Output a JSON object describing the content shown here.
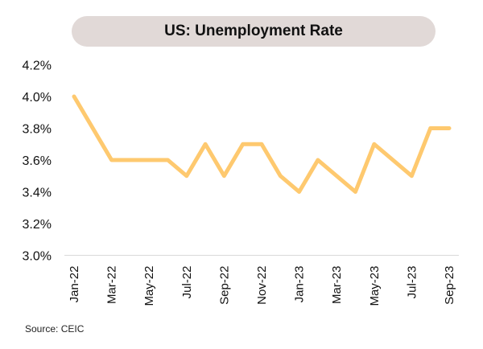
{
  "chart_data": {
    "type": "line",
    "title": "US: Unemployment Rate",
    "xlabel": "",
    "ylabel": "",
    "x": [
      "Jan-22",
      "Feb-22",
      "Mar-22",
      "Apr-22",
      "May-22",
      "Jun-22",
      "Jul-22",
      "Aug-22",
      "Sep-22",
      "Oct-22",
      "Nov-22",
      "Dec-22",
      "Jan-23",
      "Feb-23",
      "Mar-23",
      "Apr-23",
      "May-23",
      "Jun-23",
      "Jul-23",
      "Aug-23",
      "Sep-23"
    ],
    "series": [
      {
        "name": "US Unemployment Rate",
        "values": [
          4.0,
          3.8,
          3.6,
          3.6,
          3.6,
          3.6,
          3.5,
          3.7,
          3.5,
          3.7,
          3.7,
          3.5,
          3.4,
          3.6,
          3.5,
          3.4,
          3.7,
          3.6,
          3.5,
          3.8,
          3.8
        ],
        "color": "#fec96f"
      }
    ],
    "x_tick_labels": [
      "Jan-22",
      "Mar-22",
      "May-22",
      "Jul-22",
      "Sep-22",
      "Nov-22",
      "Jan-23",
      "Mar-23",
      "May-23",
      "Jul-23",
      "Sep-23"
    ],
    "y_tick_labels": [
      "4.2%",
      "4.0%",
      "3.8%",
      "3.6%",
      "3.4%",
      "3.2%",
      "3.0%"
    ],
    "y_ticks": [
      4.2,
      4.0,
      3.8,
      3.6,
      3.4,
      3.2,
      3.0
    ],
    "ylim": [
      3.0,
      4.2
    ],
    "grid": false,
    "legend": "none"
  },
  "source": "Source: CEIC"
}
